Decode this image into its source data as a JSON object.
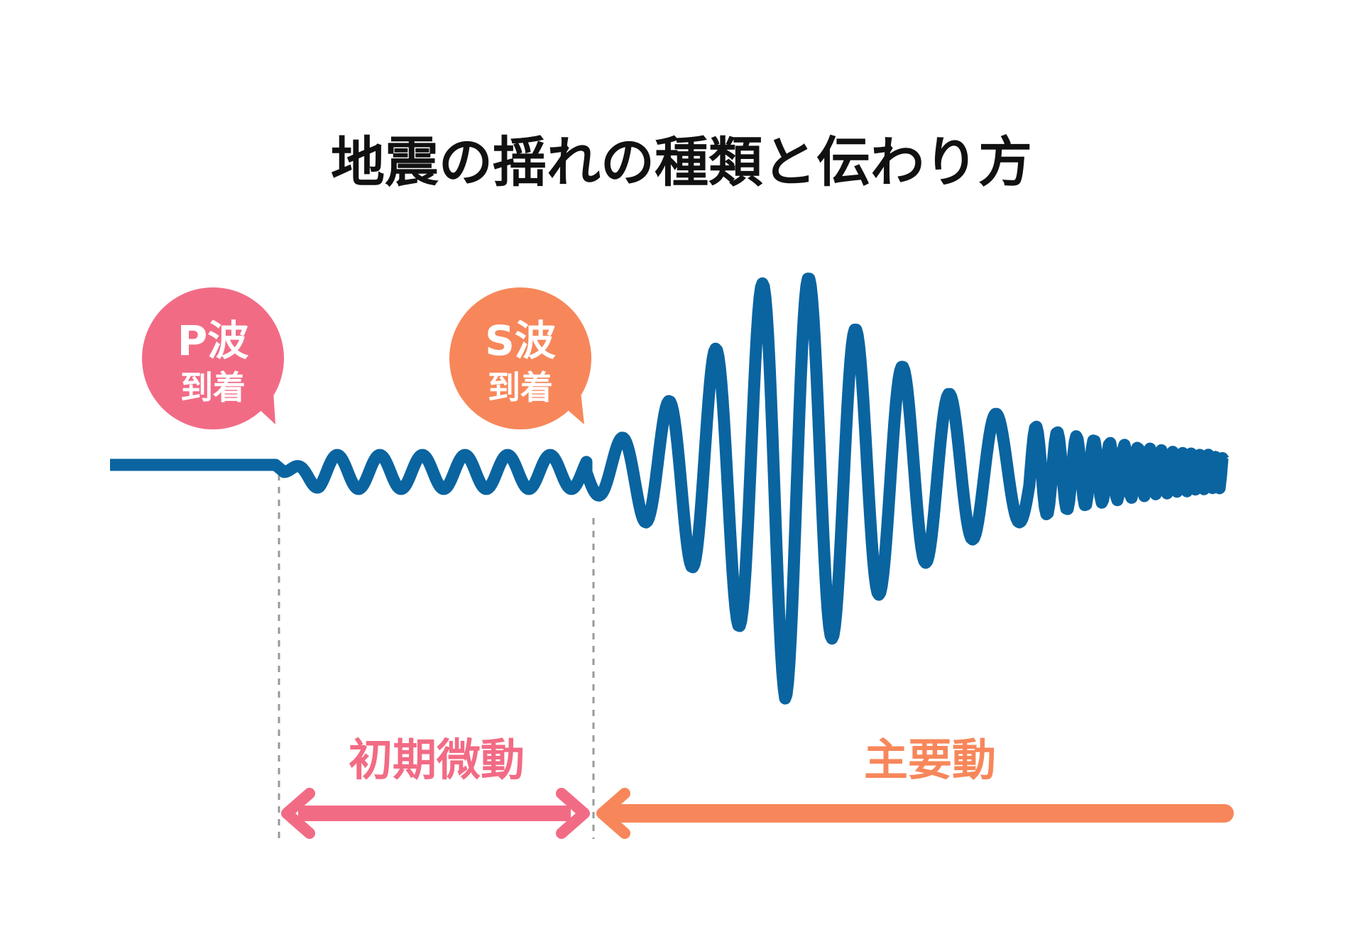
{
  "title": "地震の揺れの種類と伝わり方",
  "bubbles": {
    "p_wave": {
      "main": "P波",
      "sub": "到着"
    },
    "s_wave": {
      "main": "S波",
      "sub": "到着"
    }
  },
  "phases": {
    "initial_tremor": "初期微動",
    "main_motion": "主要動"
  },
  "colors": {
    "wave": "#0a64a0",
    "p_accent": "#f26b85",
    "s_accent": "#f7875a",
    "title": "#111111",
    "divider": "#999999"
  }
}
